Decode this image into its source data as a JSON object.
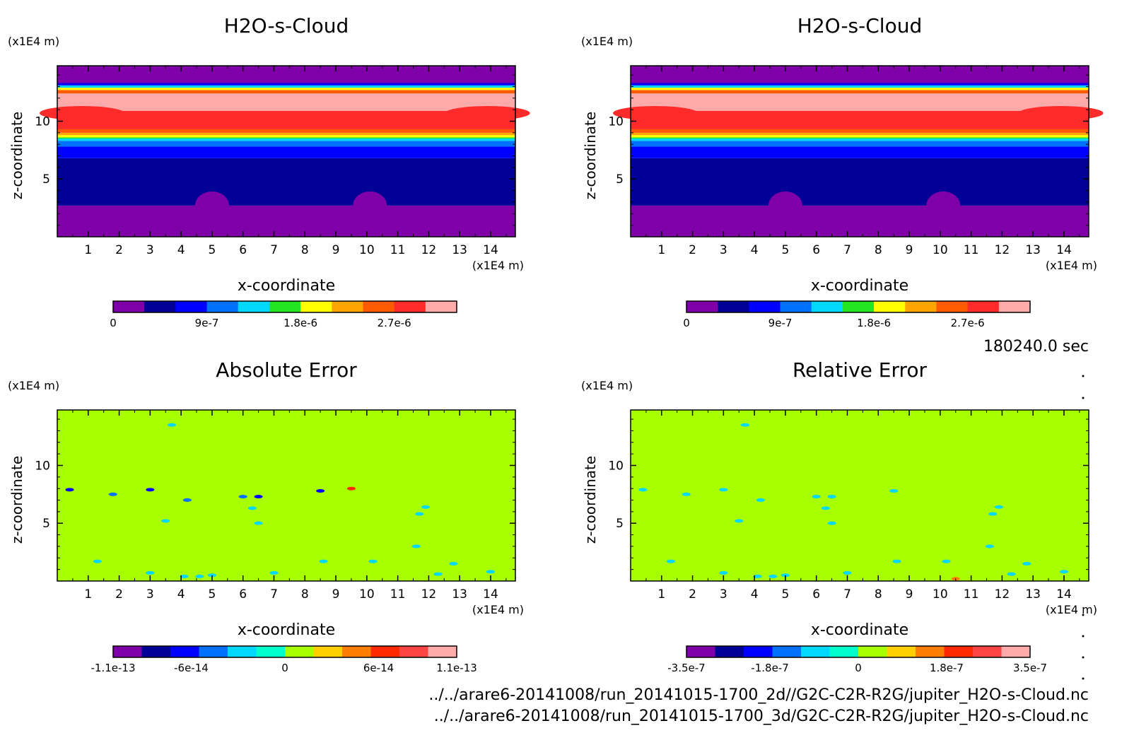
{
  "time_label": "180240.0 sec",
  "file_paths": [
    "../../arare6-20141008/run_20141015-1700_2d//G2C-C2R-R2G/jupiter_H2O-s-Cloud.nc",
    "../../arare6-20141008/run_20141015-1700_3d/G2C-C2R-R2G/jupiter_H2O-s-Cloud.nc"
  ],
  "chart_data": [
    {
      "type": "heatmap",
      "title": "H2O-s-Cloud",
      "xlabel": "x-coordinate",
      "ylabel": "z-coordinate",
      "x_unit": "(x1E4 m)",
      "z_unit": "(x1E4 m)",
      "xlim": [
        0,
        14.8
      ],
      "ylim": [
        0,
        14.8
      ],
      "x_ticks": [
        "1",
        "2",
        "3",
        "4",
        "5",
        "6",
        "7",
        "8",
        "9",
        "10",
        "11",
        "12",
        "13",
        "14"
      ],
      "z_ticks": [
        "5",
        "10"
      ],
      "colorbar": {
        "colors": [
          "#7f00a8",
          "#000096",
          "#0000ff",
          "#0070ff",
          "#00d8ff",
          "#22e622",
          "#ffff00",
          "#ffa500",
          "#ff5a00",
          "#ff2a2a",
          "#ffaaaa"
        ],
        "tick_labels": [
          "0",
          "9e-7",
          "1.8e-6",
          "2.7e-6"
        ],
        "tick_values": [
          0,
          9e-07,
          1.8e-06,
          2.7e-06
        ],
        "range": [
          0,
          3.3e-06
        ]
      },
      "bands": [
        {
          "z_bottom": 0,
          "z_top": 2.7,
          "color": "#7f00a8"
        },
        {
          "z_bottom": 2.7,
          "z_top": 6.8,
          "color": "#000096"
        },
        {
          "z_bottom": 6.8,
          "z_top": 7.8,
          "color": "#0000ff"
        },
        {
          "z_bottom": 7.8,
          "z_top": 8.3,
          "color": "#0070ff"
        },
        {
          "z_bottom": 8.3,
          "z_top": 8.5,
          "color": "#00d8ff"
        },
        {
          "z_bottom": 8.5,
          "z_top": 8.6,
          "color": "#22e622"
        },
        {
          "z_bottom": 8.6,
          "z_top": 8.8,
          "color": "#ffff00"
        },
        {
          "z_bottom": 8.8,
          "z_top": 9.0,
          "color": "#ffa500"
        },
        {
          "z_bottom": 9.0,
          "z_top": 9.3,
          "color": "#ff5a00"
        },
        {
          "z_bottom": 9.3,
          "z_top": 10.9,
          "color": "#ff2a2a"
        },
        {
          "z_bottom": 10.9,
          "z_top": 12.4,
          "color": "#ffaaaa"
        },
        {
          "z_bottom": 12.4,
          "z_top": 12.7,
          "color": "#ff5a00"
        },
        {
          "z_bottom": 12.7,
          "z_top": 12.9,
          "color": "#ffff00"
        },
        {
          "z_bottom": 12.9,
          "z_top": 13.1,
          "color": "#00d8ff"
        },
        {
          "z_bottom": 13.1,
          "z_top": 13.3,
          "color": "#0000ff"
        },
        {
          "z_bottom": 13.3,
          "z_top": 14.8,
          "color": "#7f00a8"
        }
      ]
    },
    {
      "type": "heatmap",
      "title": "H2O-s-Cloud",
      "xlabel": "x-coordinate",
      "ylabel": "z-coordinate",
      "x_unit": "(x1E4 m)",
      "z_unit": "(x1E4 m)",
      "xlim": [
        0,
        14.8
      ],
      "ylim": [
        0,
        14.8
      ],
      "x_ticks": [
        "1",
        "2",
        "3",
        "4",
        "5",
        "6",
        "7",
        "8",
        "9",
        "10",
        "11",
        "12",
        "13",
        "14"
      ],
      "z_ticks": [
        "5",
        "10"
      ],
      "colorbar": {
        "colors": [
          "#7f00a8",
          "#000096",
          "#0000ff",
          "#0070ff",
          "#00d8ff",
          "#22e622",
          "#ffff00",
          "#ffa500",
          "#ff5a00",
          "#ff2a2a",
          "#ffaaaa"
        ],
        "tick_labels": [
          "0",
          "9e-7",
          "1.8e-6",
          "2.7e-6"
        ],
        "tick_values": [
          0,
          9e-07,
          1.8e-06,
          2.7e-06
        ],
        "range": [
          0,
          3.3e-06
        ]
      },
      "bands": [
        {
          "z_bottom": 0,
          "z_top": 2.7,
          "color": "#7f00a8"
        },
        {
          "z_bottom": 2.7,
          "z_top": 6.8,
          "color": "#000096"
        },
        {
          "z_bottom": 6.8,
          "z_top": 7.8,
          "color": "#0000ff"
        },
        {
          "z_bottom": 7.8,
          "z_top": 8.3,
          "color": "#0070ff"
        },
        {
          "z_bottom": 8.3,
          "z_top": 8.5,
          "color": "#00d8ff"
        },
        {
          "z_bottom": 8.5,
          "z_top": 8.6,
          "color": "#22e622"
        },
        {
          "z_bottom": 8.6,
          "z_top": 8.8,
          "color": "#ffff00"
        },
        {
          "z_bottom": 8.8,
          "z_top": 9.0,
          "color": "#ffa500"
        },
        {
          "z_bottom": 9.0,
          "z_top": 9.3,
          "color": "#ff5a00"
        },
        {
          "z_bottom": 9.3,
          "z_top": 10.9,
          "color": "#ff2a2a"
        },
        {
          "z_bottom": 10.9,
          "z_top": 12.4,
          "color": "#ffaaaa"
        },
        {
          "z_bottom": 12.4,
          "z_top": 12.7,
          "color": "#ff5a00"
        },
        {
          "z_bottom": 12.7,
          "z_top": 12.9,
          "color": "#ffff00"
        },
        {
          "z_bottom": 12.9,
          "z_top": 13.1,
          "color": "#00d8ff"
        },
        {
          "z_bottom": 13.1,
          "z_top": 13.3,
          "color": "#0000ff"
        },
        {
          "z_bottom": 13.3,
          "z_top": 14.8,
          "color": "#7f00a8"
        }
      ]
    },
    {
      "type": "heatmap",
      "title": "Absolute Error",
      "xlabel": "x-coordinate",
      "ylabel": "z-coordinate",
      "x_unit": "(x1E4 m)",
      "z_unit": "(x1E4 m)",
      "xlim": [
        0,
        14.8
      ],
      "ylim": [
        0,
        14.8
      ],
      "x_ticks": [
        "1",
        "2",
        "3",
        "4",
        "5",
        "6",
        "7",
        "8",
        "9",
        "10",
        "11",
        "12",
        "13",
        "14"
      ],
      "z_ticks": [
        "5",
        "10"
      ],
      "background_color": "#a8ff00",
      "colorbar": {
        "colors": [
          "#7f00a8",
          "#000096",
          "#0000ff",
          "#0070ff",
          "#00d8ff",
          "#00ffcc",
          "#a8ff00",
          "#ffd000",
          "#ff8000",
          "#ff2a00",
          "#ff4444",
          "#ffaaaa"
        ],
        "tick_labels": [
          "-1.1e-13",
          "-6e-14",
          "0",
          "6e-14",
          "1.1e-13"
        ],
        "tick_values": [
          -1.1e-13,
          -6e-14,
          0,
          6e-14,
          1.1e-13
        ],
        "range": [
          -1.1e-13,
          1.1e-13
        ]
      },
      "anomalies": [
        {
          "x": 3.7,
          "z": 13.5,
          "color": "#00d8ff"
        },
        {
          "x": 0.4,
          "z": 7.9,
          "color": "#0000ff"
        },
        {
          "x": 1.8,
          "z": 7.5,
          "color": "#0070ff"
        },
        {
          "x": 3.0,
          "z": 7.9,
          "color": "#0000ff"
        },
        {
          "x": 4.2,
          "z": 7.0,
          "color": "#0070ff"
        },
        {
          "x": 6.0,
          "z": 7.3,
          "color": "#0070ff"
        },
        {
          "x": 6.5,
          "z": 7.3,
          "color": "#0000ff"
        },
        {
          "x": 6.3,
          "z": 6.3,
          "color": "#00d8ff"
        },
        {
          "x": 6.5,
          "z": 5.0,
          "color": "#00d8ff"
        },
        {
          "x": 8.5,
          "z": 7.8,
          "color": "#0000ff"
        },
        {
          "x": 9.5,
          "z": 8.0,
          "color": "#ff2a00"
        },
        {
          "x": 3.5,
          "z": 5.2,
          "color": "#00d8ff"
        },
        {
          "x": 11.7,
          "z": 5.8,
          "color": "#00d8ff"
        },
        {
          "x": 11.9,
          "z": 6.4,
          "color": "#00d8ff"
        },
        {
          "x": 11.6,
          "z": 3.0,
          "color": "#00d8ff"
        },
        {
          "x": 1.3,
          "z": 1.7,
          "color": "#00d8ff"
        },
        {
          "x": 3.0,
          "z": 0.7,
          "color": "#00d8ff"
        },
        {
          "x": 4.1,
          "z": 0.4,
          "color": "#00d8ff"
        },
        {
          "x": 4.6,
          "z": 0.4,
          "color": "#00d8ff"
        },
        {
          "x": 5.0,
          "z": 0.5,
          "color": "#00d8ff"
        },
        {
          "x": 7.0,
          "z": 0.7,
          "color": "#00d8ff"
        },
        {
          "x": 8.6,
          "z": 1.7,
          "color": "#00d8ff"
        },
        {
          "x": 10.2,
          "z": 1.7,
          "color": "#00d8ff"
        },
        {
          "x": 12.3,
          "z": 0.6,
          "color": "#00d8ff"
        },
        {
          "x": 12.8,
          "z": 1.5,
          "color": "#00d8ff"
        },
        {
          "x": 14.0,
          "z": 0.8,
          "color": "#00d8ff"
        }
      ]
    },
    {
      "type": "heatmap",
      "title": "Relative Error",
      "xlabel": "x-coordinate",
      "ylabel": "z-coordinate",
      "x_unit": "(x1E4 m)",
      "z_unit": "(x1E4 m)",
      "xlim": [
        0,
        14.8
      ],
      "ylim": [
        0,
        14.8
      ],
      "x_ticks": [
        "1",
        "2",
        "3",
        "4",
        "5",
        "6",
        "7",
        "8",
        "9",
        "10",
        "11",
        "12",
        "13",
        "14"
      ],
      "z_ticks": [
        "5",
        "10"
      ],
      "background_color": "#a8ff00",
      "colorbar": {
        "colors": [
          "#7f00a8",
          "#000096",
          "#0000ff",
          "#0070ff",
          "#00d8ff",
          "#00ffcc",
          "#a8ff00",
          "#ffd000",
          "#ff8000",
          "#ff2a00",
          "#ff4444",
          "#ffaaaa"
        ],
        "tick_labels": [
          "-3.5e-7",
          "-1.8e-7",
          "0",
          "1.8e-7",
          "3.5e-7"
        ],
        "tick_values": [
          -3.5e-07,
          -1.8e-07,
          0,
          1.8e-07,
          3.5e-07
        ],
        "range": [
          -3.5e-07,
          3.5e-07
        ]
      },
      "anomalies": [
        {
          "x": 3.7,
          "z": 13.5,
          "color": "#00d8ff"
        },
        {
          "x": 0.4,
          "z": 7.9,
          "color": "#00d8ff"
        },
        {
          "x": 1.8,
          "z": 7.5,
          "color": "#00d8ff"
        },
        {
          "x": 3.0,
          "z": 7.9,
          "color": "#00d8ff"
        },
        {
          "x": 4.2,
          "z": 7.0,
          "color": "#00d8ff"
        },
        {
          "x": 6.0,
          "z": 7.3,
          "color": "#00d8ff"
        },
        {
          "x": 6.5,
          "z": 7.3,
          "color": "#00d8ff"
        },
        {
          "x": 8.5,
          "z": 7.8,
          "color": "#00d8ff"
        },
        {
          "x": 6.3,
          "z": 6.3,
          "color": "#00d8ff"
        },
        {
          "x": 6.5,
          "z": 5.0,
          "color": "#00d8ff"
        },
        {
          "x": 3.5,
          "z": 5.2,
          "color": "#00d8ff"
        },
        {
          "x": 11.7,
          "z": 5.8,
          "color": "#00d8ff"
        },
        {
          "x": 11.9,
          "z": 6.4,
          "color": "#00d8ff"
        },
        {
          "x": 11.6,
          "z": 3.0,
          "color": "#00d8ff"
        },
        {
          "x": 1.3,
          "z": 1.7,
          "color": "#00d8ff"
        },
        {
          "x": 3.0,
          "z": 0.7,
          "color": "#00d8ff"
        },
        {
          "x": 4.1,
          "z": 0.4,
          "color": "#00d8ff"
        },
        {
          "x": 4.6,
          "z": 0.4,
          "color": "#00d8ff"
        },
        {
          "x": 5.0,
          "z": 0.5,
          "color": "#00d8ff"
        },
        {
          "x": 7.0,
          "z": 0.7,
          "color": "#00d8ff"
        },
        {
          "x": 8.6,
          "z": 1.7,
          "color": "#00d8ff"
        },
        {
          "x": 10.2,
          "z": 1.7,
          "color": "#00d8ff"
        },
        {
          "x": 10.5,
          "z": 0.2,
          "color": "#ff8000"
        },
        {
          "x": 12.3,
          "z": 0.6,
          "color": "#00d8ff"
        },
        {
          "x": 12.8,
          "z": 1.5,
          "color": "#00d8ff"
        },
        {
          "x": 14.0,
          "z": 0.8,
          "color": "#00d8ff"
        }
      ]
    }
  ]
}
